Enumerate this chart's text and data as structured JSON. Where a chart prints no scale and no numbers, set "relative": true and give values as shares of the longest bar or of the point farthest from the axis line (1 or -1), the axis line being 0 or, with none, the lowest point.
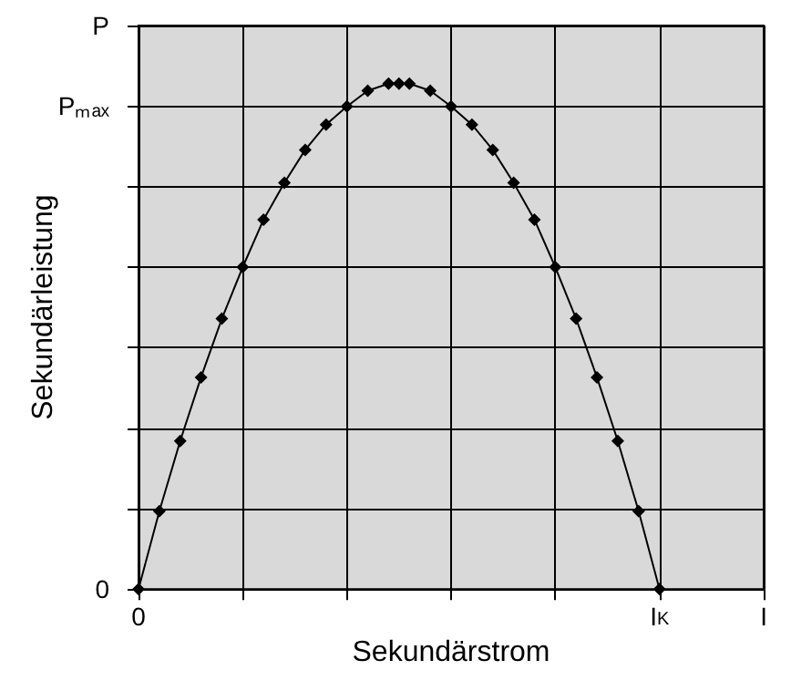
{
  "chart_data": {
    "type": "line",
    "xlabel": "Sekundärstrom",
    "ylabel": "Sekundärleistung",
    "relative": true,
    "categories": [
      "0",
      null,
      null,
      null,
      null,
      null,
      null,
      null,
      null,
      null,
      null,
      null,
      null,
      null,
      null,
      null,
      null,
      null,
      null,
      null,
      null,
      null,
      null,
      null,
      null,
      null,
      null,
      null,
      null,
      null,
      null,
      null,
      null,
      null,
      null,
      null,
      null,
      null,
      null,
      null,
      null,
      null,
      null,
      null,
      null,
      null,
      null,
      null,
      null,
      null,
      "I$_{K}$",
      null,
      null,
      null,
      null,
      null,
      null,
      null,
      null,
      null,
      "I"
    ],
    "series": [
      {
        "color": "#000000",
        "values": [
          0,
          null,
          0.154,
          null,
          0.293,
          null,
          0.419,
          null,
          0.535,
          null,
          0.637,
          null,
          0.731,
          null,
          0.804,
          null,
          0.869,
          null,
          0.919,
          null,
          0.955,
          null,
          0.986,
          null,
          1,
          1,
          1,
          null,
          0.986,
          null,
          0.955,
          null,
          0.919,
          null,
          0.869,
          null,
          0.804,
          null,
          0.731,
          null,
          0.637,
          null,
          0.535,
          null,
          0.419,
          null,
          0.293,
          null,
          0.154,
          null,
          0,
          null,
          null,
          null,
          null,
          null,
          null,
          null,
          null,
          null,
          null
        ]
      }
    ],
    "annotations": [
      "0",
      "Pₘₐₓ",
      "P"
    ],
    "grid": true,
    "marker": "diamond",
    "line_style": "solid"
  }
}
